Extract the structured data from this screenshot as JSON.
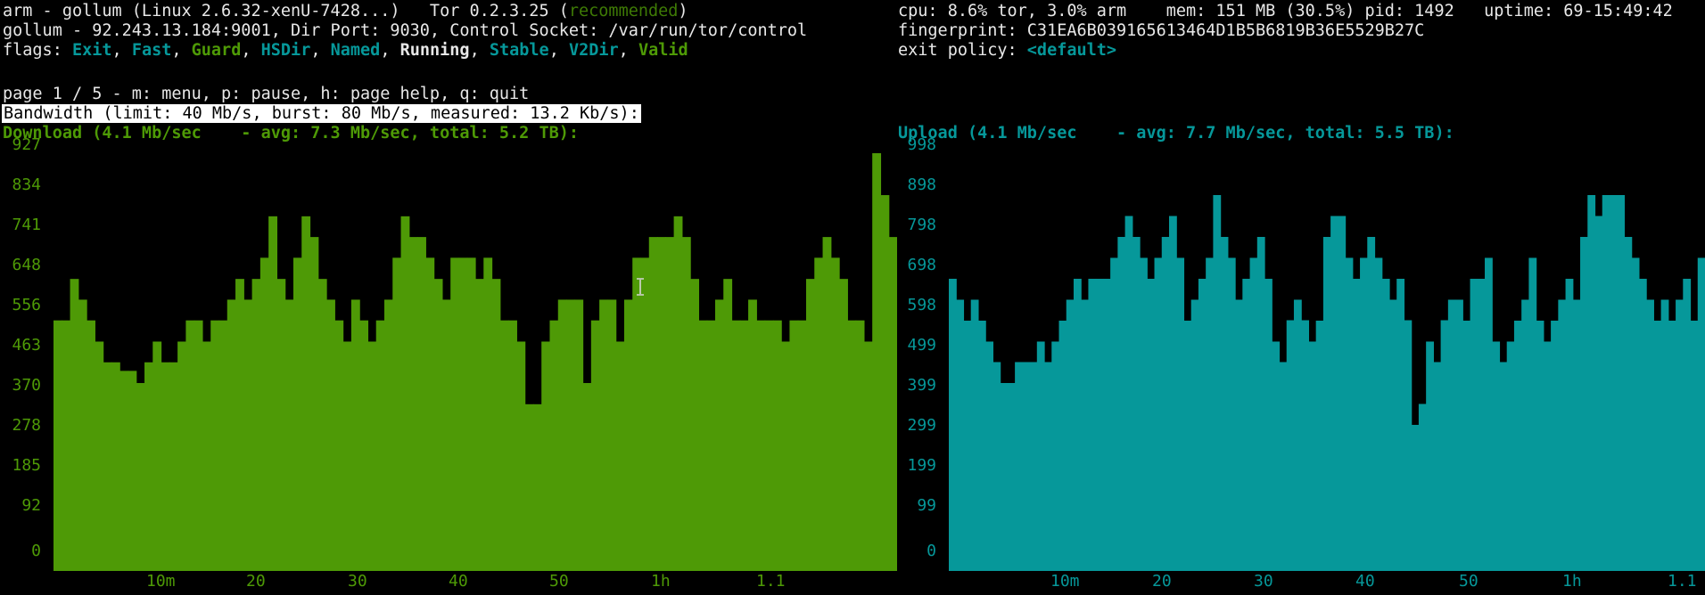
{
  "header": {
    "title_prefix": "arm - gollum (Linux 2.6.32-xenU-7428...)   Tor 0.2.3.25 (",
    "tor_status": "recommended",
    "title_suffix": ")",
    "address_line": "gollum - 92.243.13.184:9001, Dir Port: 9030, Control Socket: /var/run/tor/control",
    "flags_label": "flags: ",
    "flags": [
      "Exit",
      "Fast",
      "Guard",
      "HSDir",
      "Named",
      "Running",
      "Stable",
      "V2Dir",
      "Valid"
    ],
    "flag_separator": ", ",
    "resources": "cpu: 8.6% tor, 3.0% arm    mem: 151 MB (30.5%) pid: 1492   uptime: 69-15:49:42",
    "fingerprint": "fingerprint: C31EA6B039165613464D1B5B6819B36E5529B27C",
    "exit_policy_label": "exit policy: ",
    "exit_policy_value": "<default>",
    "page_help": "page 1 / 5 - m: menu, p: pause, h: page help, q: quit",
    "section_title": "Bandwidth (limit: 40 Mb/s, burst: 80 Mb/s, measured: 13.2 Kb/s):"
  },
  "colors": {
    "download": "#4e9a06",
    "upload": "#06989a",
    "background": "#000000"
  },
  "chart_data": [
    {
      "type": "bar",
      "title": "Download (4.1 Mb/sec    - avg: 7.3 Mb/sec, total: 5.2 TB):",
      "y_ticks": [
        "927",
        "834",
        "741",
        "648",
        "556",
        "463",
        "370",
        "278",
        "185",
        "92",
        "0"
      ],
      "x_ticks": [
        "10m",
        "20",
        "30",
        "40",
        "50",
        "1h",
        "1.1"
      ],
      "ylim": [
        0,
        927
      ],
      "values": [
        556,
        556,
        648,
        602,
        556,
        509,
        463,
        463,
        444,
        444,
        417,
        463,
        509,
        463,
        463,
        509,
        556,
        556,
        509,
        556,
        556,
        602,
        648,
        602,
        648,
        695,
        787,
        648,
        602,
        695,
        787,
        741,
        648,
        602,
        556,
        509,
        602,
        556,
        509,
        556,
        602,
        695,
        787,
        741,
        741,
        695,
        648,
        602,
        695,
        695,
        695,
        648,
        695,
        648,
        556,
        556,
        509,
        370,
        370,
        509,
        556,
        602,
        602,
        602,
        417,
        556,
        602,
        602,
        509,
        602,
        695,
        695,
        741,
        741,
        741,
        787,
        741,
        648,
        556,
        556,
        602,
        648,
        556,
        556,
        602,
        556,
        556,
        556,
        509,
        556,
        556,
        648,
        695,
        741,
        695,
        648,
        556,
        556,
        509,
        927,
        834,
        741
      ]
    },
    {
      "type": "bar",
      "title": "Upload (4.1 Mb/sec    - avg: 7.7 Mb/sec, total: 5.5 TB):",
      "y_ticks": [
        "998",
        "898",
        "798",
        "698",
        "598",
        "499",
        "399",
        "299",
        "199",
        "99",
        "0"
      ],
      "x_ticks": [
        "10m",
        "20",
        "30",
        "40",
        "50",
        "1h",
        "1.1"
      ],
      "ylim": [
        0,
        998
      ],
      "values": [
        698,
        648,
        598,
        648,
        598,
        548,
        499,
        449,
        449,
        499,
        499,
        499,
        548,
        499,
        548,
        598,
        648,
        698,
        648,
        698,
        698,
        698,
        748,
        798,
        848,
        798,
        748,
        698,
        748,
        798,
        848,
        748,
        598,
        648,
        698,
        748,
        898,
        798,
        748,
        648,
        698,
        748,
        798,
        698,
        548,
        499,
        599,
        648,
        599,
        548,
        598,
        798,
        848,
        848,
        748,
        698,
        748,
        798,
        748,
        698,
        648,
        698,
        599,
        349,
        399,
        548,
        499,
        599,
        648,
        648,
        598,
        698,
        698,
        748,
        548,
        499,
        548,
        598,
        648,
        748,
        598,
        548,
        598,
        648,
        698,
        648,
        798,
        898,
        848,
        898,
        898,
        898,
        798,
        748,
        698,
        648,
        598,
        648,
        598,
        648,
        698,
        598,
        748
      ]
    }
  ]
}
